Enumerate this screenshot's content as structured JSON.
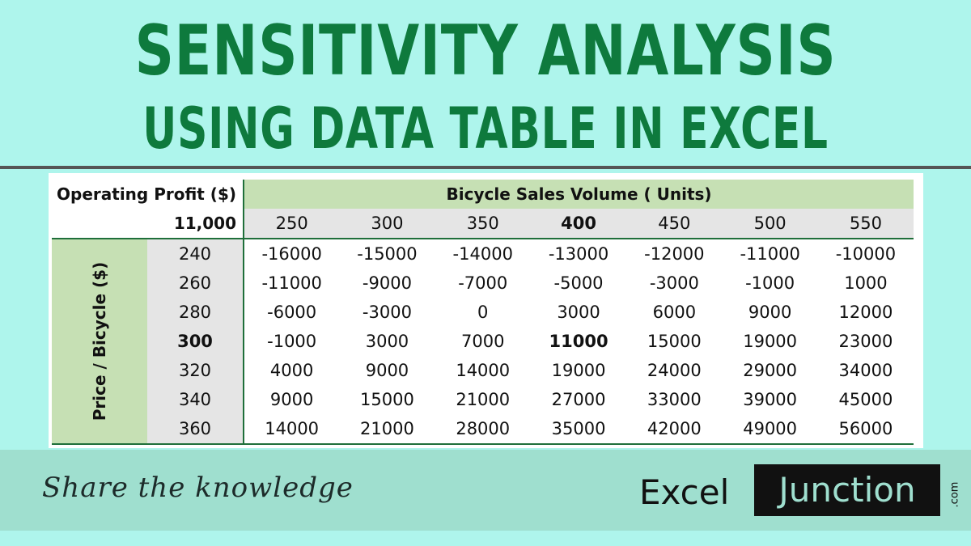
{
  "header": {
    "title_line1": "Sensitivity Analysis",
    "title_line2": "Using Data Table in Excel"
  },
  "table": {
    "corner_label": "Operating Profit ($)",
    "corner_value": "11,000",
    "column_header": "Bicycle Sales Volume ( Units)",
    "row_header": "Price / Bicycle ($)",
    "columns": [
      "250",
      "300",
      "350",
      "400",
      "450",
      "500",
      "550"
    ],
    "rows": [
      {
        "price": "240",
        "values": [
          "-16000",
          "-15000",
          "-14000",
          "-13000",
          "-12000",
          "-11000",
          "-10000"
        ]
      },
      {
        "price": "260",
        "values": [
          "-11000",
          "-9000",
          "-7000",
          "-5000",
          "-3000",
          "-1000",
          "1000"
        ]
      },
      {
        "price": "280",
        "values": [
          "-6000",
          "-3000",
          "0",
          "3000",
          "6000",
          "9000",
          "12000"
        ]
      },
      {
        "price": "300",
        "values": [
          "-1000",
          "3000",
          "7000",
          "11000",
          "15000",
          "19000",
          "23000"
        ]
      },
      {
        "price": "320",
        "values": [
          "4000",
          "9000",
          "14000",
          "19000",
          "24000",
          "29000",
          "34000"
        ]
      },
      {
        "price": "340",
        "values": [
          "9000",
          "15000",
          "21000",
          "27000",
          "33000",
          "39000",
          "45000"
        ]
      },
      {
        "price": "360",
        "values": [
          "14000",
          "21000",
          "28000",
          "35000",
          "42000",
          "49000",
          "56000"
        ]
      }
    ],
    "highlight_column": "400",
    "highlight_row": "300",
    "colors": {
      "header_fill": "#c6e0b4",
      "value_fill": "#e5e5e5",
      "border": "#1f6f3a"
    }
  },
  "footer": {
    "tagline": "Share the knowledge",
    "logo_excel": "Excel",
    "logo_junction": "Junction",
    "logo_com": ".com"
  },
  "colors": {
    "background": "#aef5ec",
    "title": "#0e7a3d",
    "footer_band": "#9fdfcf"
  }
}
